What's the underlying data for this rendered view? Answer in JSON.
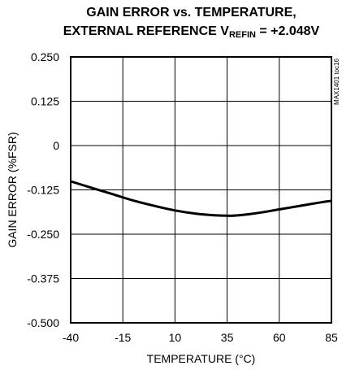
{
  "title": {
    "line1": "GAIN ERROR vs. TEMPERATURE,",
    "line2_prefix": "EXTERNAL REFERENCE V",
    "line2_sub": "REFIN",
    "line2_suffix": " = +2.048V"
  },
  "side_code": "MAX1401 toc16",
  "chart_data": {
    "type": "line",
    "xlabel": "TEMPERATURE (°C)",
    "ylabel": "GAIN ERROR (%FSR)",
    "xlim": [
      -40,
      85
    ],
    "ylim": [
      -0.5,
      0.25
    ],
    "x_ticks": [
      -40,
      -15,
      10,
      35,
      60,
      85
    ],
    "x_tick_labels": [
      "-40",
      "-15",
      "10",
      "35",
      "60",
      "85"
    ],
    "y_ticks": [
      0.25,
      0.125,
      0,
      -0.125,
      -0.25,
      -0.375,
      -0.5
    ],
    "y_tick_labels": [
      "0.250",
      "0.125",
      "0",
      "-0.125",
      "-0.250",
      "-0.375",
      "-0.500"
    ],
    "grid": true,
    "series": [
      {
        "x": [
          -40,
          -30,
          -20,
          -10,
          0,
          10,
          20,
          30,
          35,
          40,
          50,
          60,
          70,
          80,
          85
        ],
        "y": [
          -0.101,
          -0.119,
          -0.137,
          -0.155,
          -0.17,
          -0.183,
          -0.192,
          -0.197,
          -0.198,
          -0.197,
          -0.19,
          -0.18,
          -0.17,
          -0.16,
          -0.156
        ]
      }
    ]
  }
}
